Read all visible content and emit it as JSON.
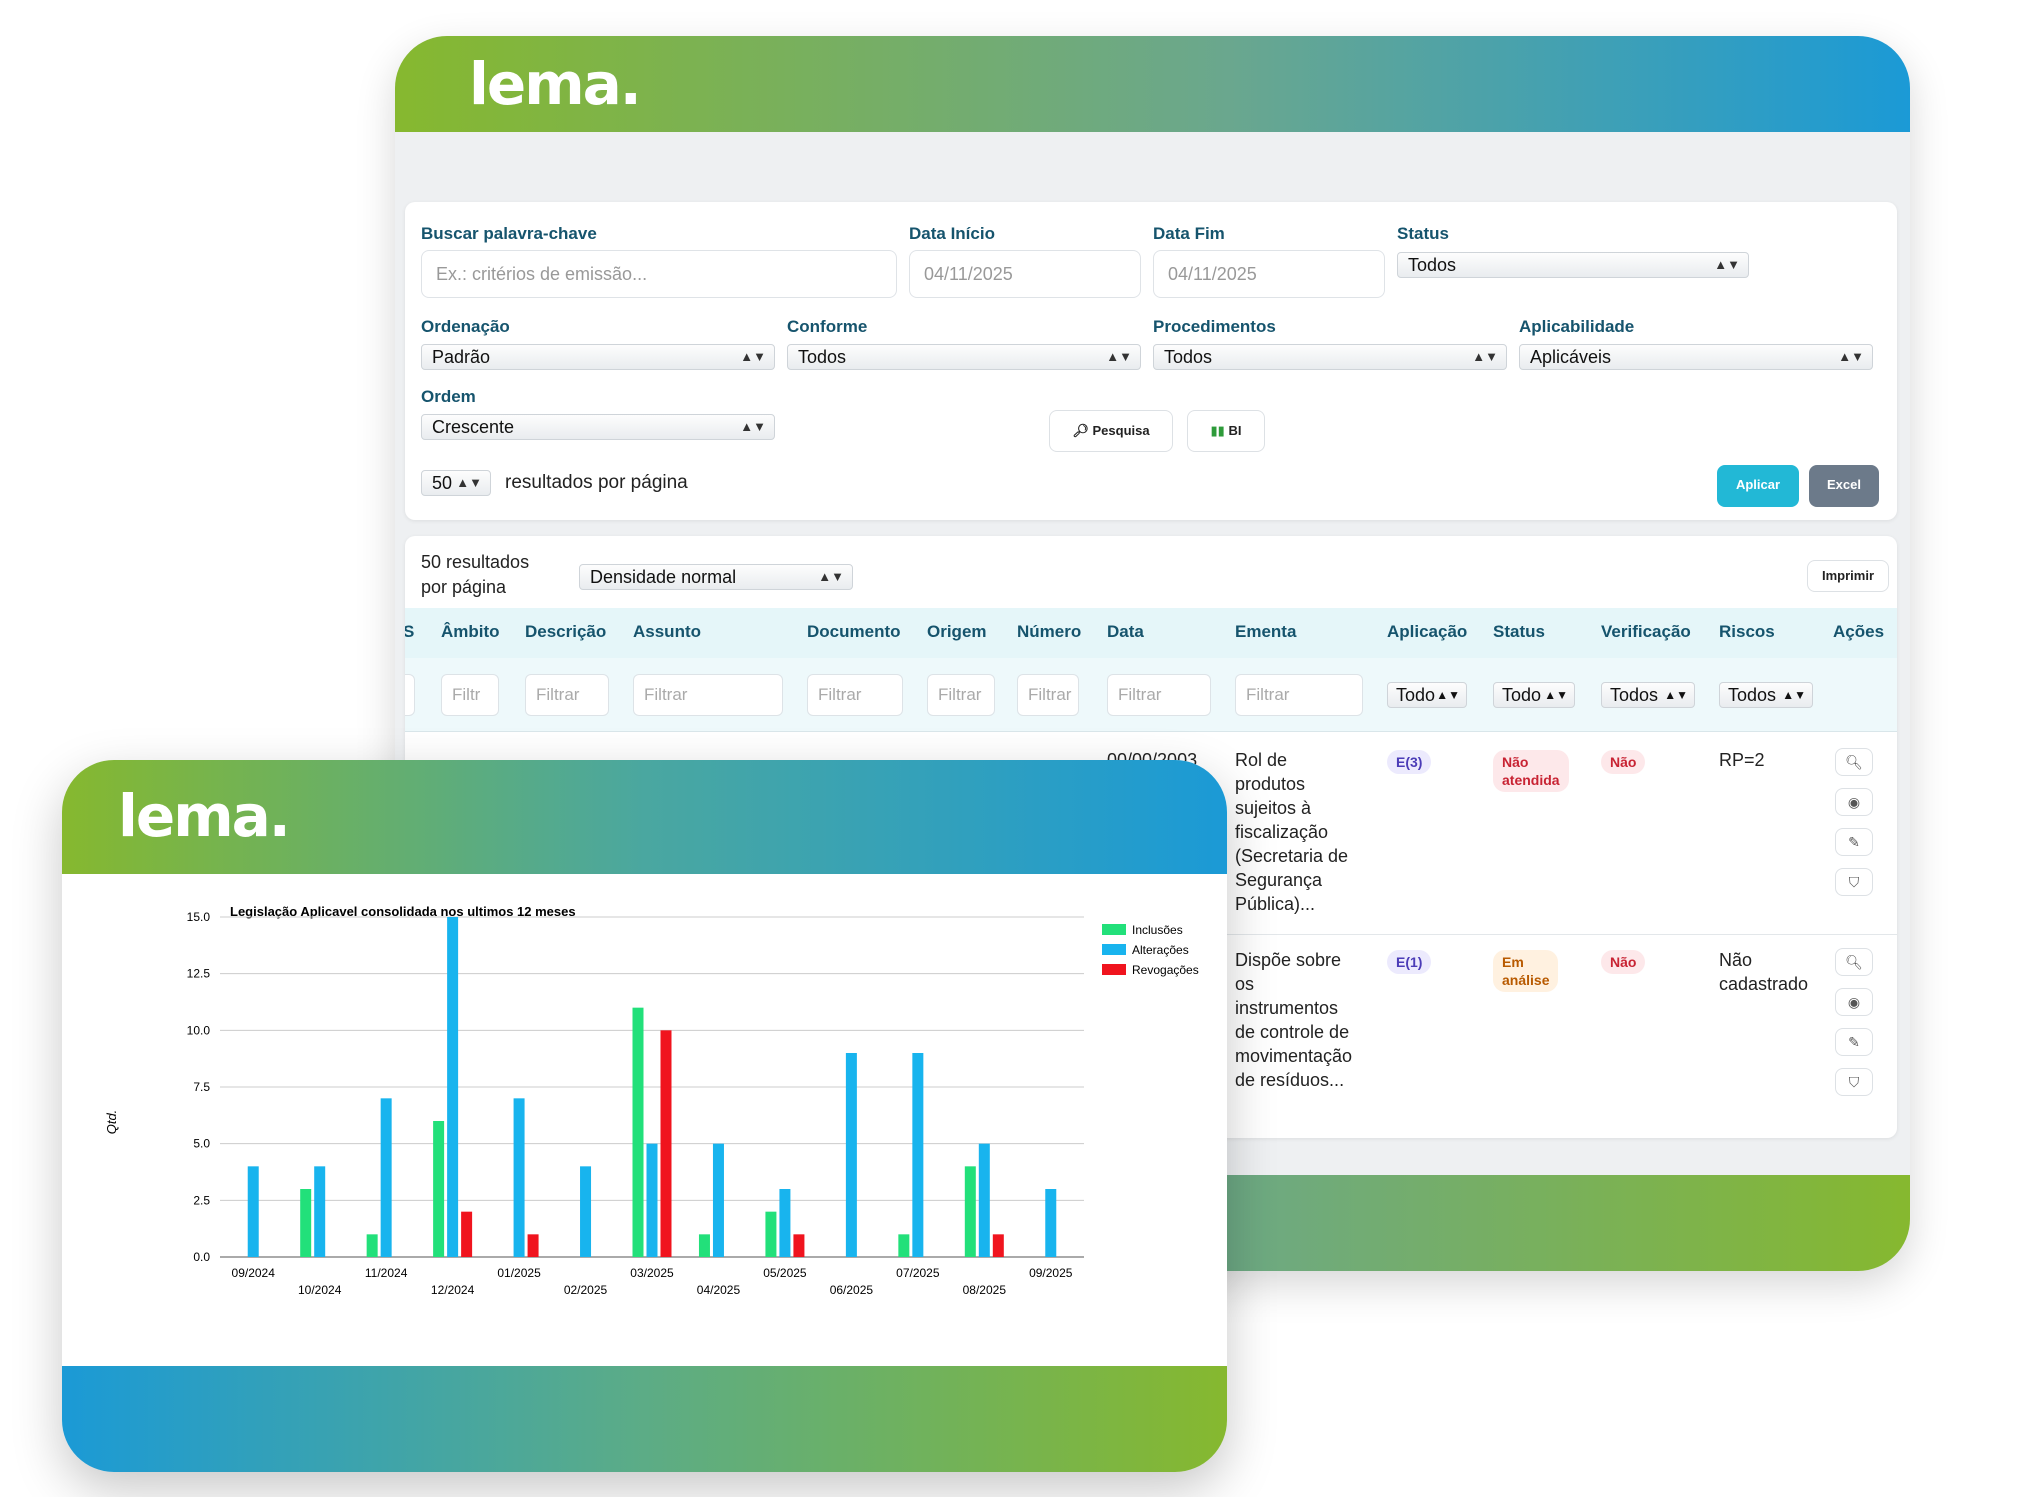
{
  "brand": {
    "logo_text": "lema."
  },
  "filters": {
    "keyword_label": "Buscar palavra-chave",
    "keyword_placeholder": "Ex.: critérios de emissão...",
    "date_start_label": "Data Início",
    "date_start_value": "04/11/2025",
    "date_end_label": "Data Fim",
    "date_end_value": "04/11/2025",
    "status_label": "Status",
    "status_value": "Todos",
    "ordering_label": "Ordenação",
    "ordering_value": "Padrão",
    "conforme_label": "Conforme",
    "conforme_value": "Todos",
    "procedimentos_label": "Procedimentos",
    "procedimentos_value": "Todos",
    "aplicabilidade_label": "Aplicabilidade",
    "aplicabilidade_value": "Aplicáveis",
    "order_label": "Ordem",
    "order_value": "Crescente",
    "search_button": "Pesquisa",
    "bi_button": "BI",
    "per_page_value": "50",
    "per_page_text": "resultados por página",
    "apply_button": "Aplicar",
    "excel_button": "Excel"
  },
  "results": {
    "per_page_line1": "50 resultados",
    "per_page_line2": "por página",
    "density_value": "Densidade normal",
    "print_button": "Imprimir",
    "columns": {
      "s": "S",
      "ambito": "Âmbito",
      "descricao": "Descrição",
      "assunto": "Assunto",
      "documento": "Documento",
      "origem": "Origem",
      "numero": "Número",
      "data": "Data",
      "ementa": "Ementa",
      "aplicacao": "Aplicação",
      "status": "Status",
      "verificacao": "Verificação",
      "riscos": "Riscos",
      "acoes": "Ações"
    },
    "filter_placeholders": {
      "ambito": "Filtr",
      "descricao": "Filtrar",
      "assunto": "Filtrar",
      "documento": "Filtrar",
      "origem": "Filtrar",
      "numero": "Filtrar",
      "data": "Filtrar",
      "ementa": "Filtrar"
    },
    "filter_selects": {
      "aplicacao": "Todo",
      "status": "Todo",
      "verificacao": "Todos",
      "riscos": "Todos"
    },
    "rows": [
      {
        "data": "00/00/2003",
        "ementa": [
          "Rol de",
          "produtos",
          "sujeitos à",
          "fiscalização",
          "(Secretaria de",
          "Segurança",
          "Pública)..."
        ],
        "aplicacao": "E(3)",
        "status": [
          "Não",
          "atendida"
        ],
        "verificacao": "Não",
        "riscos": "RP=2"
      },
      {
        "ementa": [
          "Dispõe sobre",
          "os",
          "instrumentos",
          "de controle de",
          "movimentação",
          "de resíduos..."
        ],
        "aplicacao": "E(1)",
        "status": [
          "Em",
          "análise"
        ],
        "verificacao": "Não",
        "riscos": [
          "Não",
          "cadastrado"
        ]
      }
    ]
  },
  "chart_data": {
    "type": "bar",
    "title": "Legislação Aplicavel consolidada nos ultimos 12 meses",
    "xlabel": "",
    "ylabel": "Qtd.",
    "ylim": [
      0,
      15
    ],
    "yticks": [
      "0.0",
      "2.5",
      "5.0",
      "7.5",
      "10.0",
      "12.5",
      "15.0"
    ],
    "grid": true,
    "legend": "top-right",
    "categories": [
      "09/2024",
      "10/2024",
      "11/2024",
      "12/2024",
      "01/2025",
      "02/2025",
      "03/2025",
      "04/2025",
      "05/2025",
      "06/2025",
      "07/2025",
      "08/2025",
      "09/2025"
    ],
    "series": [
      {
        "name": "Inclusões",
        "color": "#22e07a",
        "values": [
          0,
          3,
          1,
          6,
          0,
          0,
          11,
          1,
          2,
          0,
          1,
          4,
          0
        ]
      },
      {
        "name": "Alterações",
        "color": "#18b4ee",
        "values": [
          4,
          4,
          7,
          15,
          7,
          4,
          5,
          5,
          3,
          9,
          9,
          5,
          3
        ]
      },
      {
        "name": "Revogações",
        "color": "#f0141e",
        "values": [
          0,
          0,
          0,
          2,
          1,
          0,
          10,
          0,
          1,
          0,
          0,
          1,
          0
        ]
      }
    ]
  }
}
